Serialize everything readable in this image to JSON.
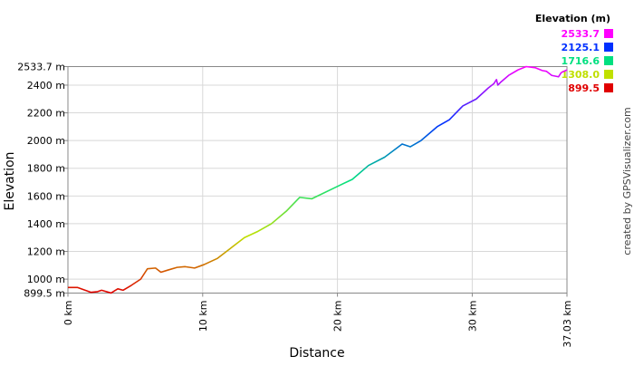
{
  "chart_data": {
    "type": "line",
    "y_label": "Elevation",
    "x_label": "Distance",
    "watermark": "created by GPSVisualizer.com",
    "grid": true,
    "xlim": [
      0,
      37.03
    ],
    "ylim": [
      899.5,
      2533.7
    ],
    "xticks": [
      {
        "value": 0,
        "label": "0 km"
      },
      {
        "value": 10,
        "label": "10 km"
      },
      {
        "value": 20,
        "label": "20 km"
      },
      {
        "value": 30,
        "label": "30 km"
      },
      {
        "value": 37.03,
        "label": "37.03 km"
      }
    ],
    "yticks": [
      {
        "value": 899.5,
        "label": "899.5 m"
      },
      {
        "value": 1000,
        "label": "1000 m"
      },
      {
        "value": 1200,
        "label": "1200 m"
      },
      {
        "value": 1400,
        "label": "1400 m"
      },
      {
        "value": 1600,
        "label": "1600 m"
      },
      {
        "value": 1800,
        "label": "1800 m"
      },
      {
        "value": 2000,
        "label": "2000 m"
      },
      {
        "value": 2200,
        "label": "2200 m"
      },
      {
        "value": 2400,
        "label": "2400 m"
      },
      {
        "value": 2533.7,
        "label": "2533.7 m"
      }
    ],
    "color_scale": {
      "title": "Elevation (m)",
      "values": [
        2533.7,
        2125.1,
        1716.6,
        1308,
        899.5
      ],
      "value_labels": [
        "2533.7",
        "2125.1",
        "1716.6",
        "1308.0",
        "899.5"
      ],
      "colors": [
        "#ff00ff",
        "#0030ff",
        "#00e080",
        "#c0e000",
        "#e00000"
      ]
    },
    "x": [
      0,
      0.7,
      1.7,
      2.2,
      2.5,
      3.2,
      3.7,
      4.1,
      4.7,
      5.4,
      5.9,
      6.5,
      6.9,
      7.4,
      8.1,
      8.7,
      9.4,
      10.1,
      11.1,
      12.3,
      13.1,
      14.1,
      15.1,
      16.2,
      17.2,
      18.1,
      19.8,
      21.1,
      22.3,
      23.5,
      24.8,
      25.4,
      26.2,
      27.4,
      28.3,
      29.3,
      30.3,
      31.2,
      31.6,
      31.8,
      31.9,
      32.1,
      32.7,
      33.4,
      34.0,
      34.7,
      35.2,
      35.5,
      35.9,
      36.4,
      36.6,
      37.03
    ],
    "series": [
      {
        "name": "Elevation",
        "values": [
          940,
          940,
          905,
          910,
          920,
          900,
          930,
          920,
          955,
          1000,
          1075,
          1080,
          1050,
          1065,
          1085,
          1090,
          1080,
          1105,
          1150,
          1240,
          1300,
          1345,
          1400,
          1490,
          1590,
          1580,
          1660,
          1720,
          1820,
          1880,
          1975,
          1955,
          2000,
          2100,
          2150,
          2250,
          2300,
          2380,
          2410,
          2440,
          2400,
          2420,
          2470,
          2510,
          2533.7,
          2525,
          2505,
          2500,
          2470,
          2460,
          2490,
          2510
        ]
      }
    ]
  }
}
